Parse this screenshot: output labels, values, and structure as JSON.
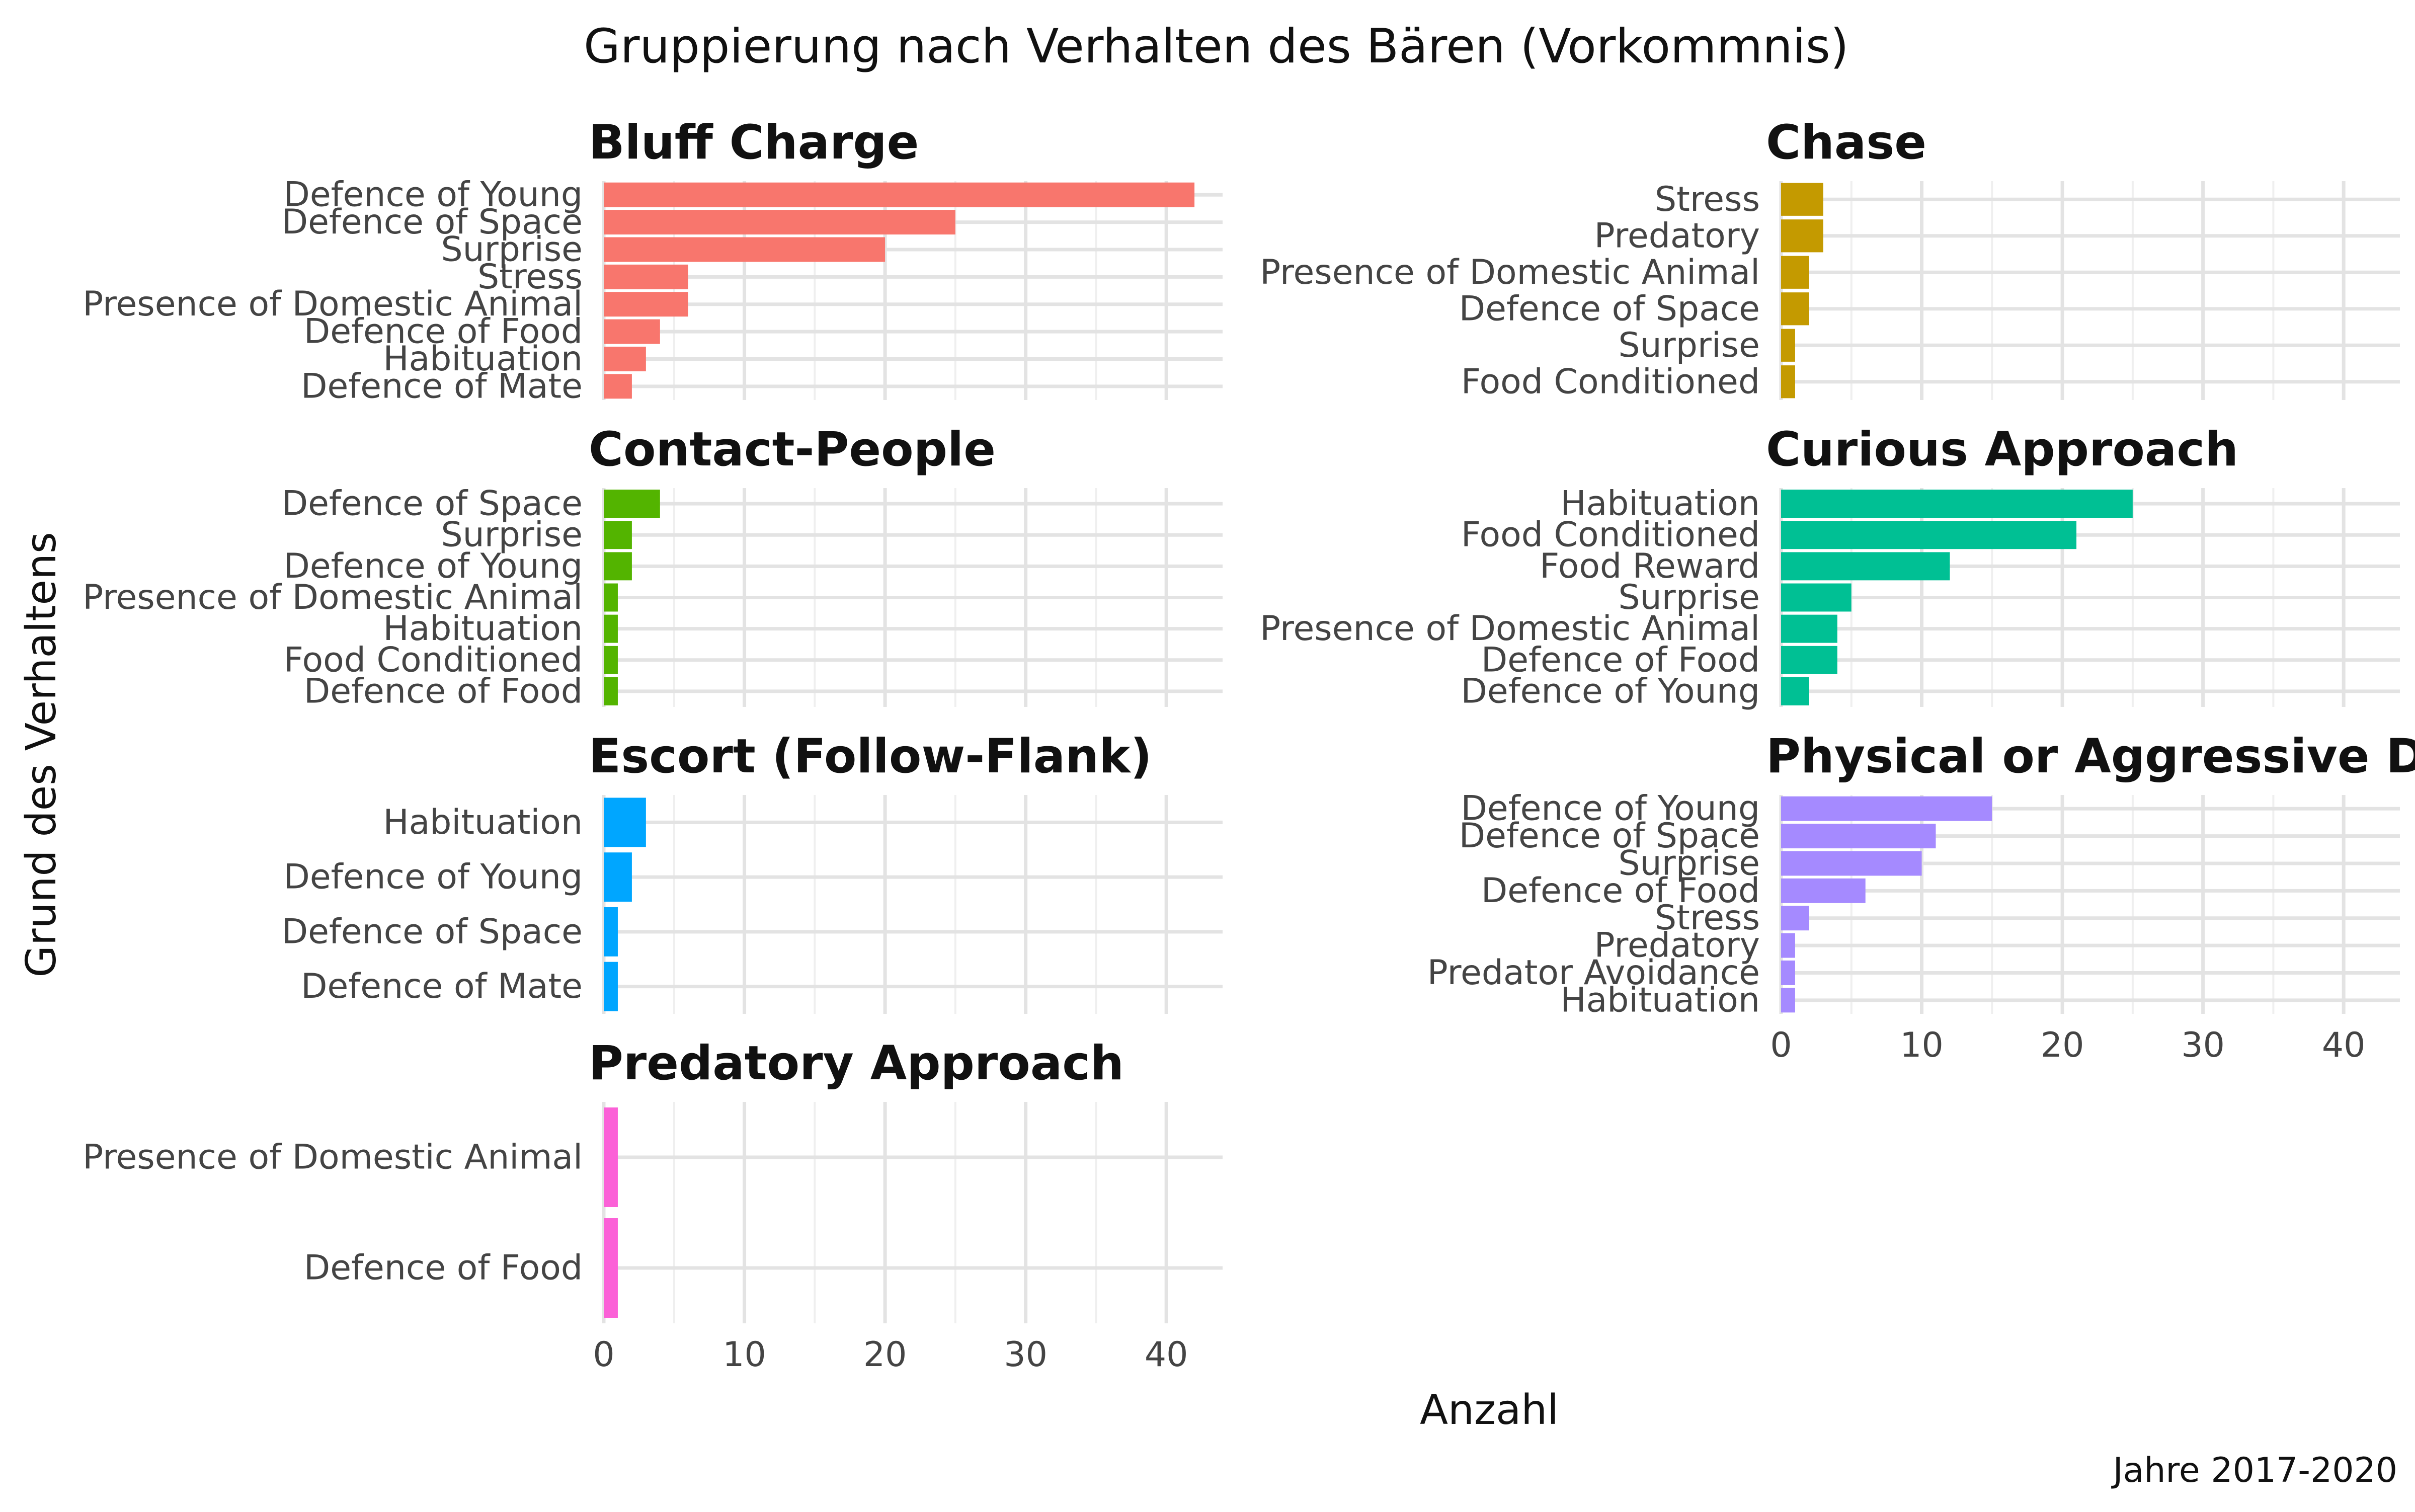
{
  "chart_data": {
    "type": "bar",
    "orientation": "horizontal",
    "title": "Gruppierung nach Verhalten des Bären (Vorkommnis)",
    "xlabel": "Anzahl",
    "ylabel": "Grund des Verhaltens",
    "caption": "Jahre 2017-2020",
    "xlim": [
      0,
      44
    ],
    "xticks": [
      0,
      10,
      20,
      30,
      40
    ],
    "grid": true,
    "panels": [
      {
        "name": "Bluff Charge",
        "color": "#F8766D",
        "categories": [
          "Defence of Young",
          "Defence of Space",
          "Surprise",
          "Stress",
          "Presence of Domestic Animal",
          "Defence of Food",
          "Habituation",
          "Defence of Mate"
        ],
        "values": [
          42,
          25,
          20,
          6,
          6,
          4,
          3,
          2
        ]
      },
      {
        "name": "Chase",
        "color": "#C49A00",
        "categories": [
          "Stress",
          "Predatory",
          "Presence of Domestic Animal",
          "Defence of Space",
          "Surprise",
          "Food Conditioned"
        ],
        "values": [
          3,
          3,
          2,
          2,
          1,
          1
        ]
      },
      {
        "name": "Contact-People",
        "color": "#53B400",
        "categories": [
          "Defence of Space",
          "Surprise",
          "Defence of Young",
          "Presence of Domestic Animal",
          "Habituation",
          "Food Conditioned",
          "Defence of Food"
        ],
        "values": [
          4,
          2,
          2,
          1,
          1,
          1,
          1
        ]
      },
      {
        "name": "Curious Approach",
        "color": "#00C094",
        "categories": [
          "Habituation",
          "Food Conditioned",
          "Food Reward",
          "Surprise",
          "Presence of Domestic Animal",
          "Defence of Food",
          "Defence of Young"
        ],
        "values": [
          25,
          21,
          12,
          5,
          4,
          4,
          2
        ]
      },
      {
        "name": "Escort (Follow-Flank)",
        "color": "#00A6FF",
        "categories": [
          "Habituation",
          "Defence of Young",
          "Defence of Space",
          "Defence of Mate"
        ],
        "values": [
          3,
          2,
          1,
          1
        ]
      },
      {
        "name": "Physical or Aggressive Displ",
        "color": "#A58AFF",
        "categories": [
          "Defence of Young",
          "Defence of Space",
          "Surprise",
          "Defence of Food",
          "Stress",
          "Predatory",
          "Predator Avoidance",
          "Habituation"
        ],
        "values": [
          15,
          11,
          10,
          6,
          2,
          1,
          1,
          1
        ]
      },
      {
        "name": "Predatory Approach",
        "color": "#FB61D7",
        "categories": [
          "Presence of Domestic Animal",
          "Defence of Food"
        ],
        "values": [
          1,
          1
        ]
      }
    ]
  }
}
